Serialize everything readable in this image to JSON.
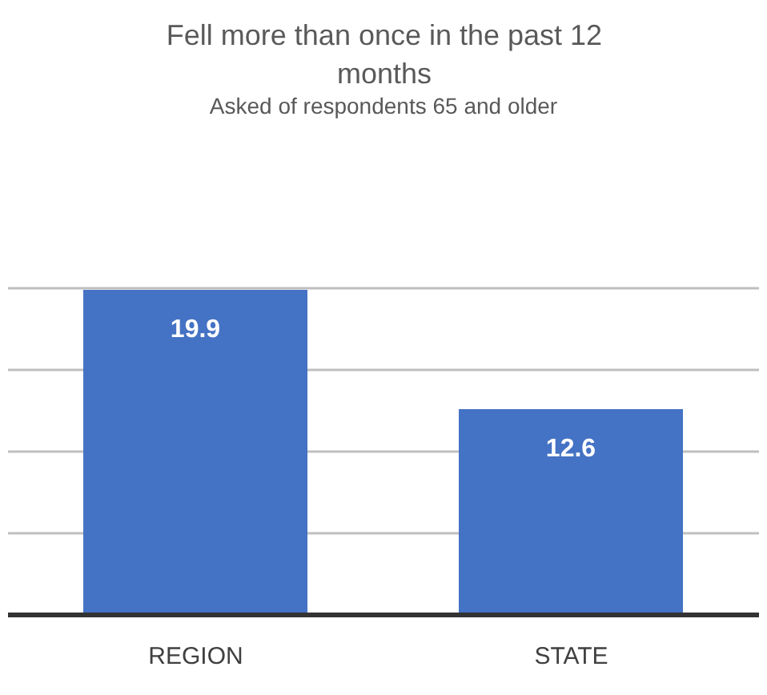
{
  "chart_data": {
    "type": "bar",
    "title": "Fell more than once in the past 12 months",
    "subtitle": "Asked of respondents 65 and older",
    "categories": [
      "REGION",
      "STATE"
    ],
    "values": [
      19.9,
      12.6
    ],
    "color": "#4472c4",
    "grid": "y",
    "tick_labels": "x",
    "data_labels": true
  }
}
